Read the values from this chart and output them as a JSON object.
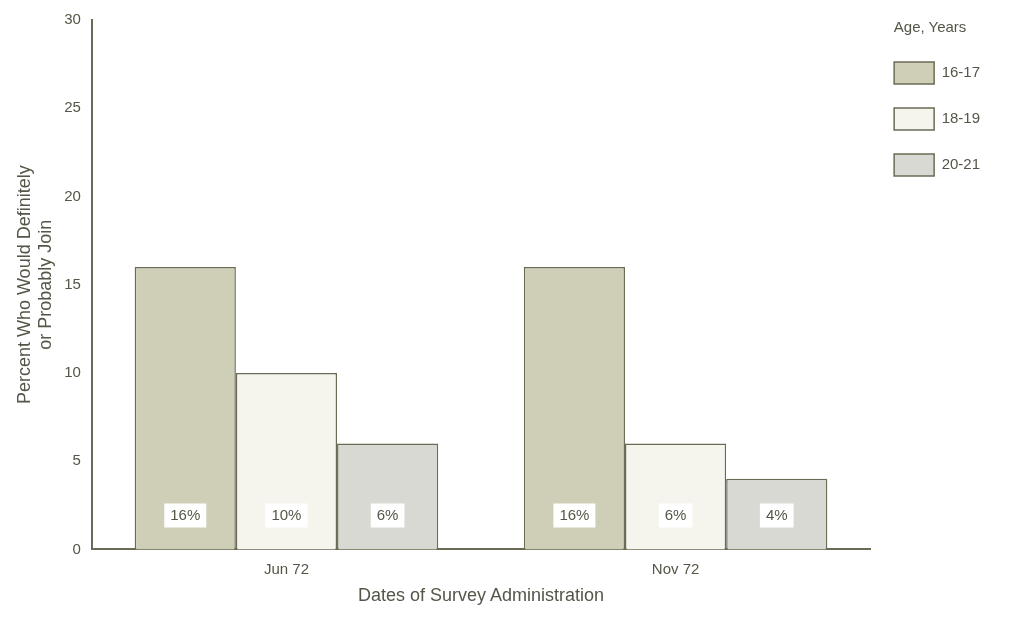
{
  "chart_data": {
    "type": "bar",
    "xlabel": "Dates of Survey Administration",
    "ylabel": "Percent Who Would Definitely\nor Probably Join",
    "legend_title": "Age, Years",
    "categories": [
      "Jun 72",
      "Nov 72"
    ],
    "series": [
      {
        "name": "16-17",
        "color": "#cfcfb8",
        "values": [
          16,
          16
        ],
        "value_labels": [
          "16%",
          "16%"
        ]
      },
      {
        "name": "18-19",
        "color": "#f5f5ee",
        "values": [
          10,
          6
        ],
        "value_labels": [
          "10%",
          "6%"
        ]
      },
      {
        "name": "20-21",
        "color": "#d9d9d4",
        "values": [
          6,
          4
        ],
        "value_labels": [
          "6%",
          "4%"
        ]
      }
    ],
    "ylim": [
      0,
      30
    ],
    "yticks": [
      0,
      5,
      10,
      15,
      20,
      25,
      30
    ],
    "grid": false,
    "legend": "top right"
  }
}
